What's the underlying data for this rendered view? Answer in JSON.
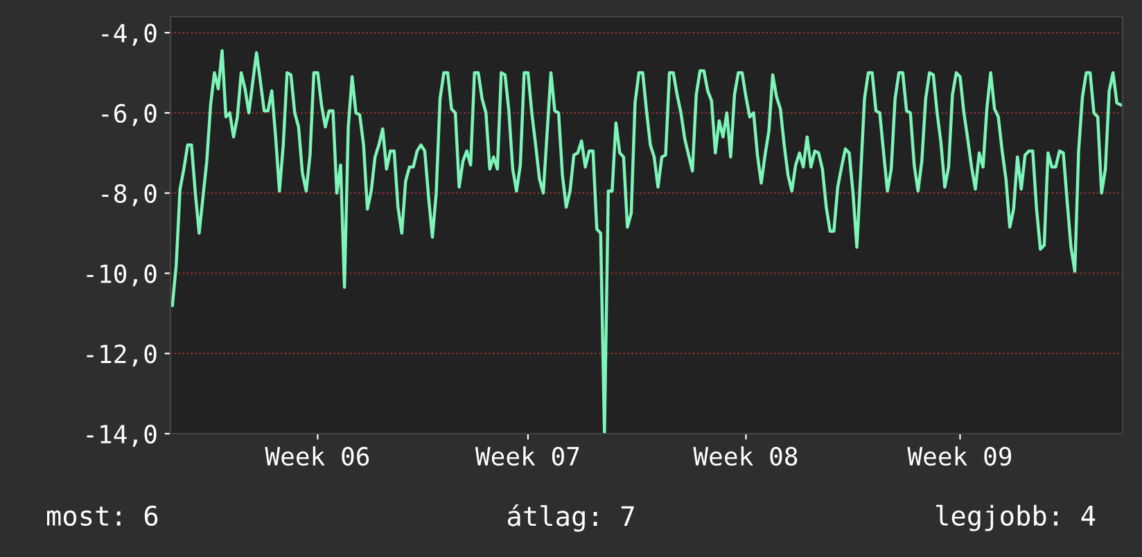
{
  "chart_data": {
    "type": "line",
    "color": "#7df5b8",
    "line_style": "solid",
    "marker": "none",
    "grid": "y",
    "legend": false,
    "ylim": [
      -14,
      -3.6
    ],
    "categories": [
      null,
      null,
      null,
      null,
      null,
      null,
      null,
      null,
      null,
      null,
      null,
      null,
      null,
      null,
      null,
      null,
      null,
      null,
      null,
      null,
      null,
      null,
      null,
      null,
      null,
      null,
      null,
      null,
      null,
      null,
      null,
      null,
      null,
      null,
      null,
      null,
      null,
      null,
      "Week 06",
      null,
      null,
      null,
      null,
      null,
      null,
      null,
      null,
      null,
      null,
      null,
      null,
      null,
      null,
      null,
      null,
      null,
      null,
      null,
      null,
      null,
      null,
      null,
      null,
      null,
      null,
      null,
      null,
      null,
      null,
      null,
      null,
      null,
      null,
      null,
      null,
      null,
      null,
      null,
      null,
      null,
      null,
      null,
      null,
      null,
      null,
      null,
      null,
      null,
      null,
      null,
      null,
      null,
      null,
      "Week 07",
      null,
      null,
      null,
      null,
      null,
      null,
      null,
      null,
      null,
      null,
      null,
      null,
      null,
      null,
      null,
      null,
      null,
      null,
      null,
      null,
      null,
      null,
      null,
      null,
      null,
      null,
      null,
      null,
      null,
      null,
      null,
      null,
      null,
      null,
      null,
      null,
      null,
      null,
      null,
      null,
      null,
      null,
      null,
      null,
      null,
      null,
      null,
      null,
      null,
      null,
      null,
      null,
      null,
      null,
      null,
      null,
      "Week 08",
      null,
      null,
      null,
      null,
      null,
      null,
      null,
      null,
      null,
      null,
      null,
      null,
      null,
      null,
      null,
      null,
      null,
      null,
      null,
      null,
      null,
      null,
      null,
      null,
      null,
      null,
      null,
      null,
      null,
      null,
      null,
      null,
      null,
      null,
      null,
      null,
      null,
      null,
      null,
      null,
      null,
      null,
      null,
      null,
      null,
      null,
      null,
      null,
      null,
      null,
      null,
      null,
      null,
      null,
      null,
      "Week 09",
      null,
      null,
      null,
      null,
      null,
      null,
      null,
      null,
      null,
      null,
      null,
      null,
      null,
      null,
      null,
      null,
      null,
      null,
      null,
      null,
      null,
      null,
      null,
      null,
      null,
      null,
      null,
      null,
      null,
      null,
      null,
      null,
      null,
      null,
      null,
      null,
      null,
      null,
      null,
      null,
      null,
      null
    ],
    "yticks": [
      {
        "value": -4,
        "label": "-4,0"
      },
      {
        "value": -6,
        "label": "-6,0"
      },
      {
        "value": -8,
        "label": "-8,0"
      },
      {
        "value": -10,
        "label": "-10,0"
      },
      {
        "value": -12,
        "label": "-12,0"
      },
      {
        "value": -14,
        "label": "-14,0"
      }
    ],
    "values": [
      -10.8,
      -9.8,
      -7.9,
      -7.4,
      -6.8,
      -6.8,
      -8.0,
      -9.0,
      -8.1,
      -7.2,
      -5.8,
      -5.0,
      -5.4,
      -4.45,
      -6.1,
      -6.0,
      -6.6,
      -6.1,
      -5.0,
      -5.4,
      -6.0,
      -5.25,
      -4.5,
      -5.2,
      -5.95,
      -5.95,
      -5.45,
      -6.6,
      -7.95,
      -6.8,
      -5.0,
      -5.05,
      -6.0,
      -6.35,
      -7.5,
      -7.95,
      -7.05,
      -5.0,
      -5.0,
      -5.8,
      -6.35,
      -5.95,
      -5.95,
      -8.0,
      -7.3,
      -10.35,
      -6.35,
      -5.1,
      -6.0,
      -6.05,
      -6.8,
      -8.4,
      -7.95,
      -7.1,
      -6.8,
      -6.4,
      -7.4,
      -6.95,
      -6.95,
      -8.35,
      -9.0,
      -7.7,
      -7.35,
      -7.35,
      -6.95,
      -6.8,
      -6.95,
      -8.1,
      -9.1,
      -8.0,
      -5.65,
      -5.0,
      -5.0,
      -5.9,
      -6.0,
      -7.85,
      -7.2,
      -6.95,
      -7.3,
      -5.0,
      -5.0,
      -5.65,
      -6.0,
      -7.4,
      -7.1,
      -7.4,
      -5.0,
      -5.05,
      -5.95,
      -7.4,
      -7.95,
      -7.3,
      -5.0,
      -5.0,
      -6.0,
      -6.8,
      -7.65,
      -8.0,
      -6.5,
      -5.0,
      -5.95,
      -6.0,
      -7.55,
      -8.35,
      -7.95,
      -7.05,
      -7.0,
      -6.7,
      -7.35,
      -6.95,
      -6.95,
      -8.9,
      -9.0,
      -14.0,
      -7.95,
      -7.95,
      -6.25,
      -7.0,
      -7.1,
      -8.85,
      -8.5,
      -5.75,
      -5.0,
      -5.0,
      -5.95,
      -6.8,
      -7.1,
      -7.85,
      -7.1,
      -7.05,
      -5.0,
      -5.0,
      -5.55,
      -6.0,
      -6.65,
      -7.05,
      -7.45,
      -5.55,
      -4.95,
      -4.95,
      -5.45,
      -5.7,
      -7.0,
      -6.2,
      -6.6,
      -6.0,
      -7.1,
      -5.55,
      -5.0,
      -5.0,
      -5.6,
      -6.1,
      -6.0,
      -7.05,
      -7.75,
      -7.05,
      -6.45,
      -5.05,
      -5.6,
      -5.9,
      -6.8,
      -7.55,
      -7.95,
      -7.3,
      -7.0,
      -7.35,
      -6.6,
      -7.35,
      -6.95,
      -7.0,
      -7.4,
      -8.35,
      -8.95,
      -8.95,
      -7.85,
      -7.35,
      -6.9,
      -7.0,
      -8.0,
      -9.35,
      -7.55,
      -5.65,
      -5.0,
      -5.0,
      -5.95,
      -6.0,
      -7.0,
      -7.95,
      -7.4,
      -5.65,
      -5.0,
      -5.0,
      -5.95,
      -6.0,
      -7.3,
      -7.95,
      -7.2,
      -5.65,
      -5.0,
      -5.05,
      -6.0,
      -6.75,
      -7.85,
      -7.35,
      -5.55,
      -5.0,
      -5.1,
      -6.0,
      -6.65,
      -7.35,
      -7.9,
      -7.0,
      -7.35,
      -5.9,
      -5.0,
      -5.9,
      -6.1,
      -6.95,
      -7.65,
      -8.85,
      -8.4,
      -7.1,
      -7.9,
      -7.05,
      -6.95,
      -6.95,
      -8.4,
      -9.4,
      -9.3,
      -7.0,
      -7.35,
      -7.35,
      -6.95,
      -7.0,
      -8.2,
      -9.35,
      -9.95,
      -6.95,
      -5.6,
      -5.0,
      -5.0,
      -6.0,
      -6.1,
      -8.0,
      -7.4,
      -5.45,
      -5.0,
      -5.75,
      -5.8
    ],
    "annotations": [
      "most: 6",
      "átlag: 7",
      "legjobb: 4"
    ]
  }
}
